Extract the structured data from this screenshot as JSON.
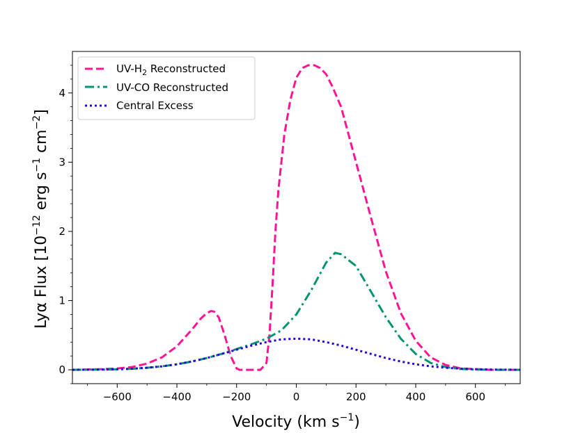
{
  "chart_data": {
    "type": "line",
    "title": "",
    "xlabel": "Velocity (km s",
    "xlabel_sup": "−1",
    "xlabel_tail": ")",
    "ylabel_parts": [
      "Lyα Flux [10",
      "−12",
      " erg s",
      "−1",
      " cm",
      "−2",
      "]"
    ],
    "xlim": [
      -750,
      750
    ],
    "ylim": [
      -0.2,
      4.6
    ],
    "xticks": [
      -600,
      -400,
      -200,
      0,
      200,
      400,
      600
    ],
    "xtick_labels": [
      "−600",
      "−400",
      "−200",
      "0",
      "200",
      "400",
      "600"
    ],
    "yticks": [
      0,
      1,
      2,
      3,
      4
    ],
    "ytick_labels": [
      "0",
      "1",
      "2",
      "3",
      "4"
    ],
    "grid": false,
    "legend_position": "top-left",
    "series": [
      {
        "name": "UV-H2 Reconstructed",
        "legend_text": "UV-H",
        "legend_sub": "2",
        "legend_tail": " Reconstructed",
        "color": "#ff1493",
        "style": "dashed",
        "x": [
          -750,
          -650,
          -600,
          -550,
          -500,
          -450,
          -400,
          -350,
          -320,
          -300,
          -285,
          -275,
          -260,
          -240,
          -220,
          -200,
          -190,
          -180,
          -150,
          -120,
          -100,
          -90,
          -80,
          -70,
          -60,
          -40,
          -20,
          0,
          20,
          40,
          60,
          80,
          100,
          120,
          150,
          200,
          250,
          300,
          350,
          400,
          450,
          500,
          550,
          600,
          650,
          750
        ],
        "y": [
          0,
          0.01,
          0.02,
          0.04,
          0.09,
          0.18,
          0.34,
          0.58,
          0.74,
          0.82,
          0.85,
          0.84,
          0.76,
          0.5,
          0.2,
          0.02,
          0,
          0,
          0,
          0,
          0.1,
          0.5,
          1.2,
          2.0,
          2.6,
          3.4,
          3.9,
          4.22,
          4.36,
          4.4,
          4.4,
          4.36,
          4.27,
          4.1,
          3.8,
          3.0,
          2.2,
          1.42,
          0.82,
          0.42,
          0.18,
          0.07,
          0.02,
          0.01,
          0,
          0
        ]
      },
      {
        "name": "UV-CO Reconstructed",
        "legend_text": "UV-CO Reconstructed",
        "color": "#009473",
        "style": "dashdot",
        "x": [
          -750,
          -650,
          -600,
          -550,
          -500,
          -450,
          -400,
          -350,
          -300,
          -250,
          -200,
          -150,
          -100,
          -50,
          0,
          50,
          100,
          130,
          150,
          200,
          250,
          300,
          350,
          400,
          450,
          500,
          550,
          600,
          650,
          750
        ],
        "y": [
          0,
          0.003,
          0.007,
          0.015,
          0.03,
          0.05,
          0.08,
          0.12,
          0.17,
          0.23,
          0.3,
          0.37,
          0.45,
          0.57,
          0.8,
          1.15,
          1.55,
          1.69,
          1.67,
          1.5,
          1.13,
          0.76,
          0.45,
          0.23,
          0.1,
          0.04,
          0.012,
          0.004,
          0.001,
          0
        ]
      },
      {
        "name": "Central Excess",
        "legend_text": "Central Excess",
        "color": "#2b00d9",
        "style": "dotted",
        "x": [
          -750,
          -700,
          -650,
          -600,
          -550,
          -500,
          -450,
          -400,
          -350,
          -300,
          -250,
          -200,
          -150,
          -100,
          -50,
          0,
          50,
          100,
          150,
          200,
          250,
          300,
          350,
          400,
          450,
          500,
          550,
          600,
          650,
          700,
          750
        ],
        "y": [
          0.001,
          0.002,
          0.004,
          0.008,
          0.016,
          0.03,
          0.05,
          0.08,
          0.12,
          0.17,
          0.23,
          0.29,
          0.35,
          0.4,
          0.44,
          0.45,
          0.44,
          0.4,
          0.35,
          0.29,
          0.23,
          0.17,
          0.12,
          0.08,
          0.05,
          0.03,
          0.016,
          0.008,
          0.004,
          0.002,
          0.001
        ]
      }
    ]
  }
}
